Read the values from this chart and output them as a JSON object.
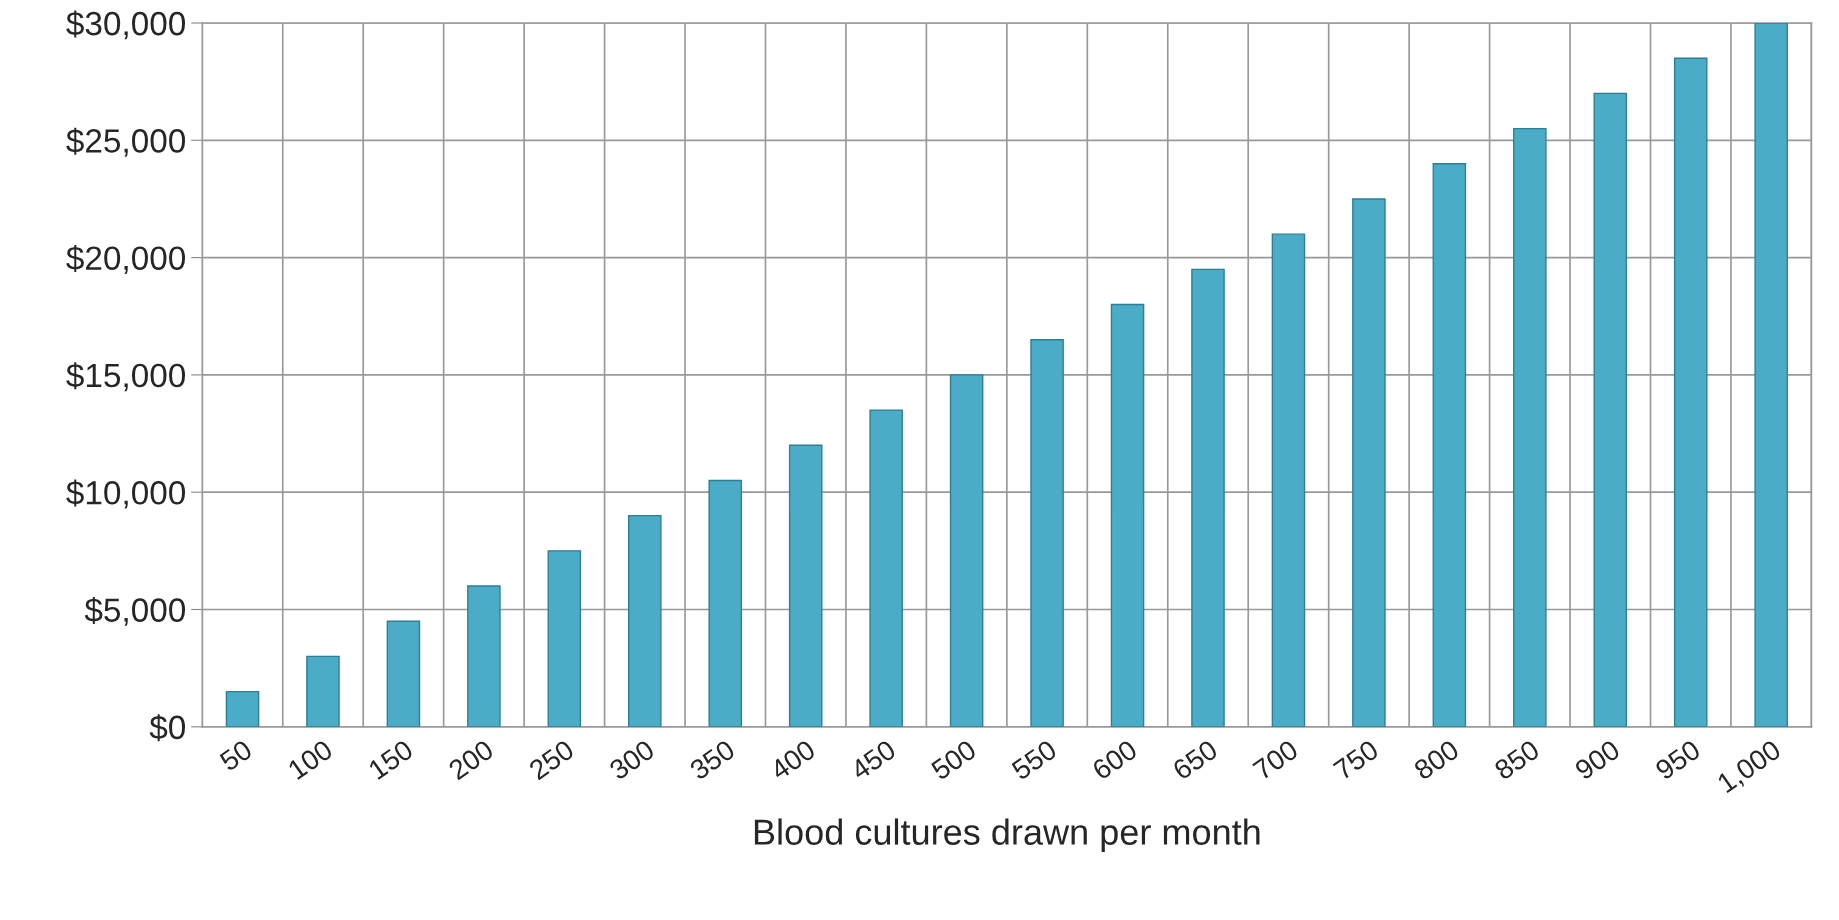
{
  "chart_data": {
    "type": "bar",
    "xlabel": "Blood cultures drawn per month",
    "categories": [
      "50",
      "100",
      "150",
      "200",
      "250",
      "300",
      "350",
      "400",
      "450",
      "500",
      "550",
      "600",
      "650",
      "700",
      "750",
      "800",
      "850",
      "900",
      "950",
      "1,000"
    ],
    "values": [
      1500,
      3000,
      4500,
      6000,
      7500,
      9000,
      10500,
      12000,
      13500,
      15000,
      16500,
      18000,
      19500,
      21000,
      22500,
      24000,
      25500,
      27000,
      28500,
      30000
    ],
    "color": "#4aacc6",
    "ylim": [
      0,
      30000
    ],
    "yticks": [
      {
        "value": 0,
        "label": "$0"
      },
      {
        "value": 5000,
        "label": "$5,000"
      },
      {
        "value": 10000,
        "label": "$10,000"
      },
      {
        "value": 15000,
        "label": "$15,000"
      },
      {
        "value": 20000,
        "label": "$20,000"
      },
      {
        "value": 25000,
        "label": "$25,000"
      },
      {
        "value": 30000,
        "label": "$30,000"
      }
    ],
    "grid": true
  }
}
